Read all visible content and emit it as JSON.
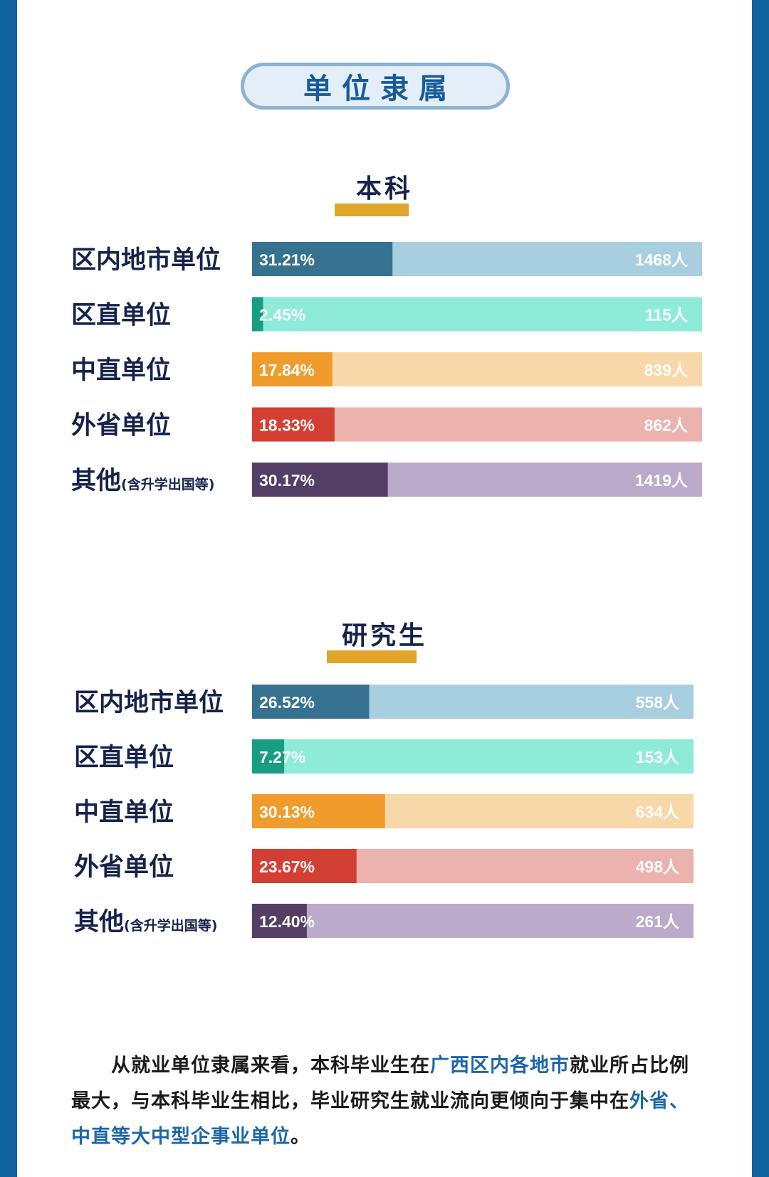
{
  "header": {
    "title": "单位隶属"
  },
  "colors": {
    "border": "#1163a0",
    "title_underline": "#e0a52a",
    "highlight_text": "#1d66a8"
  },
  "chart_data": [
    {
      "type": "bar",
      "title": "本科",
      "categories": [
        "区内地市单位",
        "区直单位",
        "中直单位",
        "外省单位",
        "其他"
      ],
      "category_notes": [
        "",
        "",
        "",
        "",
        "(含升学出国等)"
      ],
      "percent_values": [
        31.21,
        2.45,
        17.84,
        18.33,
        30.17
      ],
      "percent_labels": [
        "31.21%",
        "2.45%",
        "17.84%",
        "18.33%",
        "30.17%"
      ],
      "count_values": [
        1468,
        115,
        839,
        862,
        1419
      ],
      "count_labels": [
        "1468人",
        "115人",
        "839人",
        "862人",
        "1419人"
      ],
      "fill_colors": [
        "#36718f",
        "#179d82",
        "#ef9c2d",
        "#d43f33",
        "#553e65"
      ],
      "track_colors": [
        "#a7cfe0",
        "#8debd7",
        "#f8d7a9",
        "#ecb2ad",
        "#bbaaca"
      ]
    },
    {
      "type": "bar",
      "title": "研究生",
      "categories": [
        "区内地市单位",
        "区直单位",
        "中直单位",
        "外省单位",
        "其他"
      ],
      "category_notes": [
        "",
        "",
        "",
        "",
        "(含升学出国等)"
      ],
      "percent_values": [
        26.52,
        7.27,
        30.13,
        23.67,
        12.4
      ],
      "percent_labels": [
        "26.52%",
        "7.27%",
        "30.13%",
        "23.67%",
        "12.40%"
      ],
      "count_values": [
        558,
        153,
        634,
        498,
        261
      ],
      "count_labels": [
        "558人",
        "153人",
        "634人",
        "498人",
        "261人"
      ],
      "fill_colors": [
        "#36718f",
        "#179d82",
        "#ef9c2d",
        "#d43f33",
        "#553e65"
      ],
      "track_colors": [
        "#a7cfe0",
        "#8debd7",
        "#f8d7a9",
        "#ecb2ad",
        "#bbaaca"
      ]
    }
  ],
  "summary": {
    "part1": "从就业单位隶属来看，本科毕业生在",
    "highlight1": "广西区内各地市",
    "part2": "就业所占比例最大，与本科毕业生相比，毕业研究生就业流向更倾向于集中在",
    "highlight2": "外省、中直等大中型企事业单位",
    "part3": "。"
  }
}
